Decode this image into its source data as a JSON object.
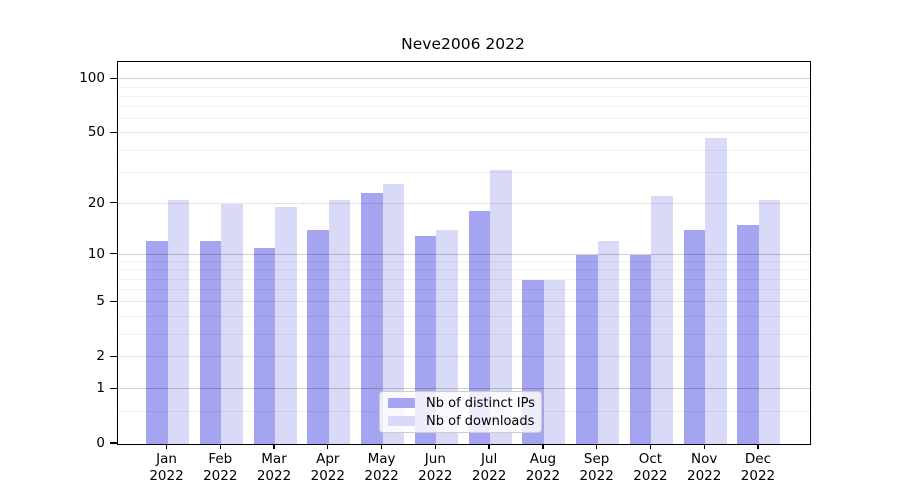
{
  "title": "Neve2006 2022",
  "chart_data": {
    "type": "bar",
    "title": "Neve2006 2022",
    "categories": [
      "Jan 2022",
      "Feb 2022",
      "Mar 2022",
      "Apr 2022",
      "May 2022",
      "Jun 2022",
      "Jul 2022",
      "Aug 2022",
      "Sep 2022",
      "Oct 2022",
      "Nov 2022",
      "Dec 2022"
    ],
    "x_months": [
      "Jan",
      "Feb",
      "Mar",
      "Apr",
      "May",
      "Jun",
      "Jul",
      "Aug",
      "Sep",
      "Oct",
      "Nov",
      "Dec"
    ],
    "x_year": "2022",
    "series": [
      {
        "name": "Nb of distinct IPs",
        "color": "#a4a4f1",
        "values": [
          12,
          12,
          11,
          14,
          23,
          13,
          18,
          7,
          10,
          10,
          14,
          15
        ]
      },
      {
        "name": "Nb of downloads",
        "color": "#d9d9f8",
        "values": [
          21,
          20,
          19,
          21,
          26,
          14,
          31,
          7,
          12,
          22,
          47,
          21
        ]
      }
    ],
    "y_axis": {
      "scale": "symlog",
      "tick_labels": [
        0,
        1,
        2,
        5,
        10,
        20,
        50,
        100
      ],
      "top_value": 125,
      "gridlines_major": [
        1,
        10,
        100
      ],
      "gridlines_labeled": [
        2,
        5,
        20,
        50
      ],
      "gridlines_minor": [
        0.5,
        3,
        4,
        6,
        7,
        8,
        9,
        30,
        40,
        60,
        70,
        80,
        90
      ]
    },
    "legend": {
      "position": "bottom-center",
      "entries": [
        "Nb of distinct IPs",
        "Nb of downloads"
      ]
    },
    "grid": true
  },
  "colors": {
    "bar_distinct_ips": "#a4a4f1",
    "bar_downloads": "#d9d9f8",
    "grid_major": "rgba(0,0,0,0.19)",
    "grid_labeled": "rgba(0,0,0,0.10)",
    "grid_minor": "rgba(0,0,0,0.05)",
    "spine": "#000000",
    "text": "#000000",
    "legend_border": "#cccccc",
    "legend_bg": "rgba(255,255,255,0.8)"
  }
}
